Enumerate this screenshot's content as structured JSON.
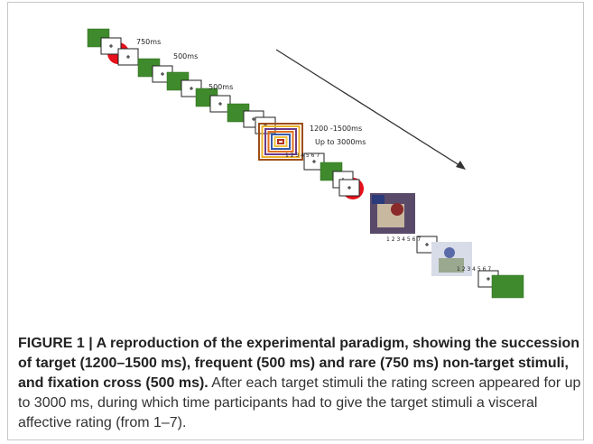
{
  "figure": {
    "timing_labels": [
      "750ms",
      "500ms",
      "500ms",
      "1200 -1500ms",
      "Up to 3000ms"
    ],
    "rating_scales": [
      "1 2 3 4 5 6 7",
      "1 2 3 4 5 6 7",
      "1 2 3 4 5 6 7"
    ]
  },
  "caption": {
    "bold": "FIGURE 1 | A reproduction of the experimental paradigm, showing the succession of target (1200–1500 ms), frequent (500 ms) and rare (750 ms) non-target stimuli, and fixation cross (500 ms).",
    "text": "After each target stimuli the rating screen appeared for up to 3000 ms, during which time participants had to give the target stimuli a visceral affective rating (from 1–7)."
  }
}
